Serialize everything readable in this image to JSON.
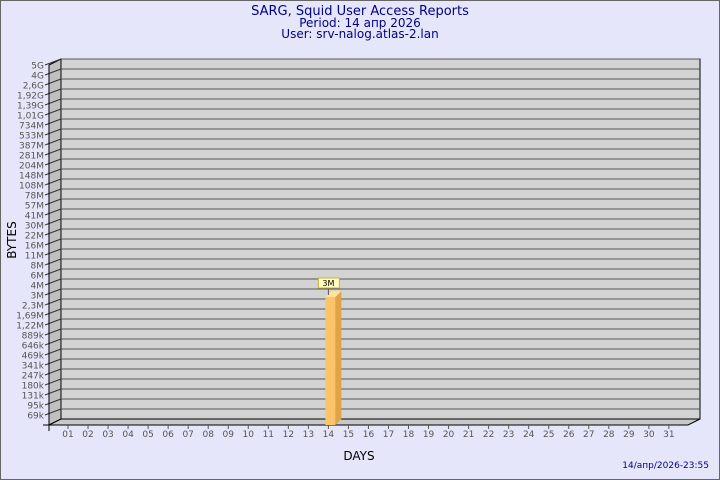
{
  "title": "SARG, Squid User Access Reports",
  "period": "Period: 14 апр 2026",
  "user": "User: srv-nalog.atlas-2.lan",
  "timestamp": "14/апр/2026-23:55",
  "colors": {
    "background": "#e6e6fa",
    "plot": "#d3d3d3",
    "bar": "#fcc46a",
    "bar_side": "#e0a348",
    "bar_top": "#fde49a",
    "title": "#00008b"
  },
  "chart_data": {
    "type": "bar",
    "xlabel": "DAYS",
    "ylabel": "BYTES",
    "yscale": "log",
    "grid": true,
    "y_ticks": [
      "5G",
      "4G",
      "2,6G",
      "1,92G",
      "1,39G",
      "1,01G",
      "734M",
      "533M",
      "387M",
      "281M",
      "204M",
      "148M",
      "108M",
      "78M",
      "57M",
      "41M",
      "30M",
      "22M",
      "16M",
      "11M",
      "8M",
      "6M",
      "4M",
      "3M",
      "2,3M",
      "1,69M",
      "1,22M",
      "889k",
      "646k",
      "469k",
      "341k",
      "247k",
      "180k",
      "131k",
      "95k",
      "69k"
    ],
    "categories": [
      "01",
      "02",
      "03",
      "04",
      "05",
      "06",
      "07",
      "08",
      "09",
      "10",
      "11",
      "12",
      "13",
      "14",
      "15",
      "16",
      "17",
      "18",
      "19",
      "20",
      "21",
      "22",
      "23",
      "24",
      "25",
      "26",
      "27",
      "28",
      "29",
      "30",
      "31"
    ],
    "bars": [
      {
        "day": "14",
        "value": 3000000,
        "label": "3M"
      }
    ]
  }
}
